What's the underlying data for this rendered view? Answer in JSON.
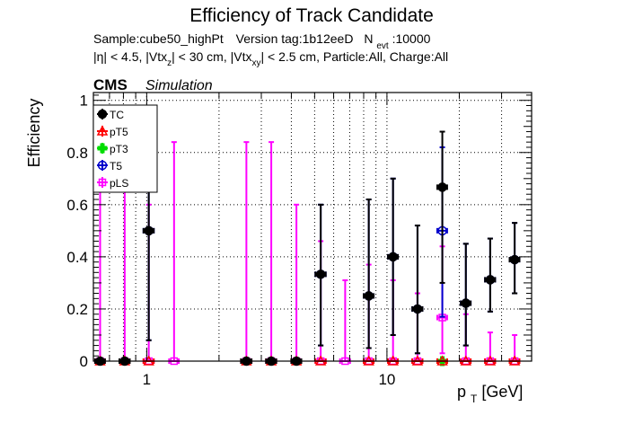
{
  "chart_data": {
    "type": "scatter",
    "title": "Efficiency of Track Candidate",
    "subtitle_line1": {
      "sample": "Sample:cube50_highPt",
      "version": "Version tag:1b12eeD",
      "n_main": "N",
      "n_sub": "evt",
      "n_value": ":10000"
    },
    "subtitle_line2": [
      {
        "text": "|η| < 4.5, |Vtx",
        "sub": false
      },
      {
        "text": "z",
        "sub": true
      },
      {
        "text": "| < 30 cm, |Vtx",
        "sub": false
      },
      {
        "text": "xy",
        "sub": true
      },
      {
        "text": "| < 2.5 cm, Particle:All, Charge:All",
        "sub": false
      }
    ],
    "cms_label": "CMS",
    "simulation_label": "Simulation",
    "ylabel": "Efficiency",
    "xlabel_main": "p",
    "xlabel_sub": "T",
    "xlabel_unit": " [GeV]",
    "xscale": "log",
    "xlim": [
      0.6,
      40
    ],
    "ylim": [
      0,
      1.03
    ],
    "yticks": [
      0,
      0.2,
      0.4,
      0.6,
      0.8,
      1
    ],
    "ytick_labels": [
      "0",
      "0.2",
      "0.4",
      "0.6",
      "0.8",
      "1"
    ],
    "xticks_major": [
      1,
      10
    ],
    "xtick_labels": [
      "1",
      "10"
    ],
    "grid": true,
    "legend_position": "top-left",
    "series": [
      {
        "name": "TC",
        "color": "#000000",
        "fill": "#000000",
        "marker": "circle",
        "points": [
          {
            "x": 0.64,
            "y": 0,
            "xerr": 0.03,
            "yhi": 0
          },
          {
            "x": 0.81,
            "y": 0,
            "xerr": 0.04,
            "yhi": 0
          },
          {
            "x": 1.02,
            "y": 0.5,
            "xerr": 0.05,
            "ylo": 0.08,
            "yhi": 0.92
          },
          {
            "x": 2.6,
            "y": 0,
            "xerr": 0.13,
            "yhi": 0
          },
          {
            "x": 3.3,
            "y": 0,
            "xerr": 0.16,
            "yhi": 0
          },
          {
            "x": 4.2,
            "y": 0,
            "xerr": 0.2,
            "yhi": 0
          },
          {
            "x": 5.3,
            "y": 0.333,
            "xerr": 0.26,
            "ylo": 0.06,
            "yhi": 0.6
          },
          {
            "x": 8.4,
            "y": 0.25,
            "xerr": 0.4,
            "ylo": 0.05,
            "yhi": 0.62
          },
          {
            "x": 10.6,
            "y": 0.4,
            "xerr": 0.5,
            "ylo": 0.1,
            "yhi": 0.7
          },
          {
            "x": 13.4,
            "y": 0.2,
            "xerr": 0.65,
            "ylo": 0.03,
            "yhi": 0.52
          },
          {
            "x": 17,
            "y": 0.667,
            "xerr": 0.8,
            "ylo": 0.3,
            "yhi": 0.88
          },
          {
            "x": 21.3,
            "y": 0.222,
            "xerr": 1.0,
            "ylo": 0.06,
            "yhi": 0.45
          },
          {
            "x": 26.9,
            "y": 0.312,
            "xerr": 1.3,
            "ylo": 0.19,
            "yhi": 0.47
          },
          {
            "x": 34,
            "y": 0.389,
            "xerr": 1.6,
            "ylo": 0.26,
            "yhi": 0.53
          }
        ]
      },
      {
        "name": "pT5",
        "color": "#ff0000",
        "fill": "none",
        "marker": "triangle",
        "points": [
          {
            "x": 0.64,
            "y": 0,
            "xerr": 0.03
          },
          {
            "x": 0.81,
            "y": 0,
            "xerr": 0.04
          },
          {
            "x": 1.02,
            "y": 0,
            "xerr": 0.05
          },
          {
            "x": 2.6,
            "y": 0,
            "xerr": 0.13
          },
          {
            "x": 3.3,
            "y": 0,
            "xerr": 0.16
          },
          {
            "x": 4.2,
            "y": 0,
            "xerr": 0.2
          },
          {
            "x": 5.3,
            "y": 0,
            "xerr": 0.26
          },
          {
            "x": 8.4,
            "y": 0,
            "xerr": 0.4
          },
          {
            "x": 10.6,
            "y": 0,
            "xerr": 0.5
          },
          {
            "x": 13.4,
            "y": 0,
            "xerr": 0.65
          },
          {
            "x": 17,
            "y": 0,
            "xerr": 0.8
          },
          {
            "x": 21.3,
            "y": 0,
            "xerr": 1.0
          },
          {
            "x": 26.9,
            "y": 0,
            "xerr": 1.3
          },
          {
            "x": 34,
            "y": 0,
            "xerr": 1.6
          }
        ]
      },
      {
        "name": "pT3",
        "color": "#00dd00",
        "fill": "#00dd00",
        "marker": "cross",
        "points": [
          {
            "x": 17,
            "y": 0,
            "xerr": 0.8
          }
        ]
      },
      {
        "name": "T5",
        "color": "#0000cc",
        "fill": "none",
        "marker": "circle-open",
        "points": [
          {
            "x": 1.02,
            "y": 0.5,
            "xerr": 0.05,
            "ylo": 0.08,
            "yhi": 0.92
          },
          {
            "x": 5.3,
            "y": 0.333,
            "xerr": 0.26,
            "ylo": 0.06,
            "yhi": 0.6
          },
          {
            "x": 8.4,
            "y": 0.25,
            "xerr": 0.4,
            "ylo": 0.05,
            "yhi": 0.62
          },
          {
            "x": 10.6,
            "y": 0.4,
            "xerr": 0.5,
            "ylo": 0.1,
            "yhi": 0.7
          },
          {
            "x": 13.4,
            "y": 0.2,
            "xerr": 0.65,
            "ylo": 0.03,
            "yhi": 0.52
          },
          {
            "x": 17,
            "y": 0.5,
            "xerr": 0.8,
            "ylo": 0.17,
            "yhi": 0.82
          },
          {
            "x": 21.3,
            "y": 0.222,
            "xerr": 1.0,
            "ylo": 0.06,
            "yhi": 0.45
          },
          {
            "x": 26.9,
            "y": 0.312,
            "xerr": 1.3,
            "ylo": 0.19,
            "yhi": 0.47
          },
          {
            "x": 34,
            "y": 0.389,
            "xerr": 1.6,
            "ylo": 0.26,
            "yhi": 0.53
          }
        ]
      },
      {
        "name": "pLS",
        "color": "#ff00ff",
        "fill": "none",
        "marker": "square",
        "points": [
          {
            "x": 0.64,
            "y": 0,
            "xerr": 0.03,
            "ylo": 0,
            "yhi": 0.84
          },
          {
            "x": 0.81,
            "y": 0,
            "xerr": 0.04,
            "ylo": 0,
            "yhi": 0.84
          },
          {
            "x": 1.02,
            "y": 0,
            "xerr": 0.05,
            "ylo": 0,
            "yhi": 0.6
          },
          {
            "x": 1.3,
            "y": 0,
            "xerr": 0.06,
            "ylo": 0,
            "yhi": 0.84
          },
          {
            "x": 2.6,
            "y": 0,
            "xerr": 0.13,
            "ylo": 0,
            "yhi": 0.84
          },
          {
            "x": 3.3,
            "y": 0,
            "xerr": 0.16,
            "ylo": 0,
            "yhi": 0.84
          },
          {
            "x": 4.2,
            "y": 0,
            "xerr": 0.2,
            "ylo": 0,
            "yhi": 0.6
          },
          {
            "x": 5.3,
            "y": 0,
            "xerr": 0.26,
            "ylo": 0,
            "yhi": 0.46
          },
          {
            "x": 6.7,
            "y": 0,
            "xerr": 0.32,
            "ylo": 0,
            "yhi": 0.31
          },
          {
            "x": 8.4,
            "y": 0,
            "xerr": 0.4,
            "ylo": 0,
            "yhi": 0.37
          },
          {
            "x": 10.6,
            "y": 0,
            "xerr": 0.5,
            "ylo": 0,
            "yhi": 0.31
          },
          {
            "x": 13.4,
            "y": 0,
            "xerr": 0.65,
            "ylo": 0,
            "yhi": 0.26
          },
          {
            "x": 17,
            "y": 0.167,
            "xerr": 0.8,
            "ylo": 0.03,
            "yhi": 0.44
          },
          {
            "x": 21.3,
            "y": 0,
            "xerr": 1.0,
            "ylo": 0,
            "yhi": 0.18
          },
          {
            "x": 26.9,
            "y": 0,
            "xerr": 1.3,
            "ylo": 0,
            "yhi": 0.11
          },
          {
            "x": 34,
            "y": 0,
            "xerr": 1.6,
            "ylo": 0,
            "yhi": 0.1
          }
        ]
      }
    ]
  }
}
